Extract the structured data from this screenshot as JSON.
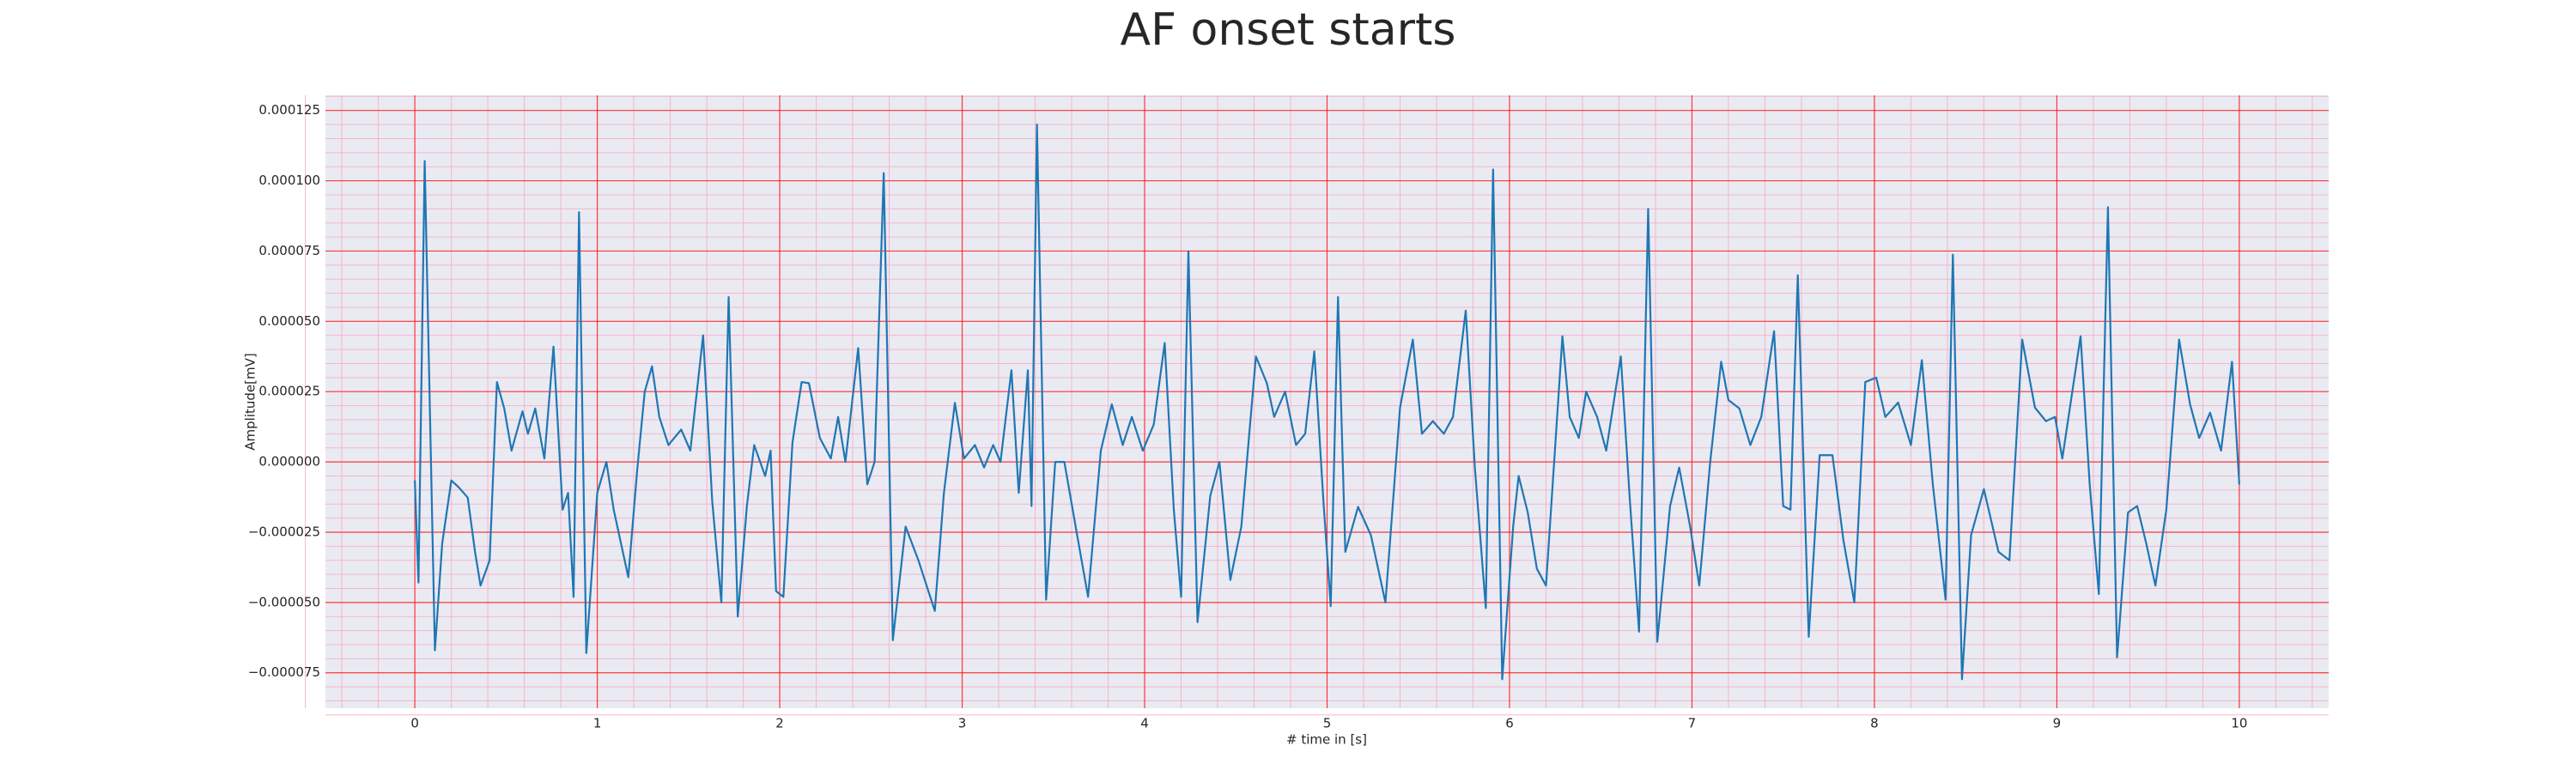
{
  "chart_data": {
    "type": "line",
    "title": "AF onset starts",
    "xlabel": "# time in [s]",
    "ylabel": "Amplitude[mV]",
    "xlim": [
      -0.49,
      10.49
    ],
    "ylim": [
      -8.76e-05,
      0.0001304
    ],
    "xticks": [
      0,
      1,
      2,
      3,
      4,
      5,
      6,
      7,
      8,
      9,
      10
    ],
    "yticks": [
      {
        "value": -7.5e-05,
        "label": "−0.000075"
      },
      {
        "value": -5e-05,
        "label": "−0.000050"
      },
      {
        "value": -2.5e-05,
        "label": "−0.000025"
      },
      {
        "value": 0,
        "label": "0.000000"
      },
      {
        "value": 2.5e-05,
        "label": "0.000025"
      },
      {
        "value": 5e-05,
        "label": "0.000050"
      },
      {
        "value": 7.5e-05,
        "label": "0.000075"
      },
      {
        "value": 0.0001,
        "label": "0.000100"
      },
      {
        "value": 0.000125,
        "label": "0.000125"
      }
    ],
    "grid": true,
    "minor_grid": true,
    "grid_color": "#ff0000",
    "minor_grid_color": "#f4b6c8",
    "background": "#eaeaf2",
    "series": [
      {
        "color": "#1f77b4",
        "x": [
          0,
          0.02,
          0.054,
          0.11,
          0.15,
          0.2,
          0.24,
          0.29,
          0.33,
          0.36,
          0.41,
          0.45,
          0.49,
          0.53,
          0.59,
          0.62,
          0.66,
          0.71,
          0.76,
          0.81,
          0.84,
          0.87,
          0.9,
          0.94,
          1.0,
          1.05,
          1.09,
          1.17,
          1.22,
          1.26,
          1.3,
          1.34,
          1.39,
          1.46,
          1.51,
          1.58,
          1.63,
          1.68,
          1.72,
          1.77,
          1.82,
          1.86,
          1.92,
          1.95,
          1.98,
          2.02,
          2.07,
          2.12,
          2.16,
          2.22,
          2.28,
          2.32,
          2.36,
          2.43,
          2.48,
          2.52,
          2.57,
          2.62,
          2.69,
          2.76,
          2.85,
          2.9,
          2.96,
          3.01,
          3.07,
          3.12,
          3.17,
          3.21,
          3.27,
          3.31,
          3.36,
          3.38,
          3.41,
          3.46,
          3.51,
          3.56,
          3.63,
          3.69,
          3.76,
          3.82,
          3.88,
          3.93,
          3.99,
          4.05,
          4.11,
          4.16,
          4.2,
          4.24,
          4.29,
          4.36,
          4.41,
          4.47,
          4.53,
          4.61,
          4.67,
          4.71,
          4.77,
          4.83,
          4.88,
          4.93,
          4.98,
          5.02,
          5.06,
          5.1,
          5.17,
          5.24,
          5.32,
          5.4,
          5.47,
          5.52,
          5.58,
          5.64,
          5.69,
          5.76,
          5.81,
          5.87,
          5.91,
          5.96,
          6.02,
          6.05,
          6.1,
          6.15,
          6.2,
          6.29,
          6.33,
          6.38,
          6.42,
          6.48,
          6.53,
          6.61,
          6.66,
          6.71,
          6.76,
          6.81,
          6.88,
          6.93,
          6.99,
          7.04,
          7.1,
          7.16,
          7.2,
          7.26,
          7.32,
          7.38,
          7.45,
          7.5,
          7.54,
          7.58,
          7.64,
          7.7,
          7.77,
          7.83,
          7.89,
          7.95,
          8.01,
          8.06,
          8.13,
          8.2,
          8.26,
          8.32,
          8.39,
          8.43,
          8.48,
          8.53,
          8.6,
          8.68,
          8.74,
          8.81,
          8.88,
          8.94,
          8.99,
          9.03,
          9.13,
          9.18,
          9.23,
          9.28,
          9.33,
          9.39,
          9.44,
          9.49,
          9.54,
          9.6,
          9.67,
          9.73,
          9.78,
          9.84,
          9.9,
          9.96,
          10.0
        ],
        "values": [
          -6.6e-06,
          -4.29e-05,
          0.000107,
          -6.7e-05,
          -2.9e-05,
          -6.6e-06,
          -9e-06,
          -1.27e-05,
          -3.2e-05,
          -4.4e-05,
          -3.5e-05,
          2.84e-05,
          1.9e-05,
          4e-06,
          1.8e-05,
          1e-05,
          1.9e-05,
          1.2e-06,
          4.1e-05,
          -1.7e-05,
          -1.1e-05,
          -4.8e-05,
          8.88e-05,
          -6.8e-05,
          -1.1e-05,
          0,
          -1.7e-05,
          -4.1e-05,
          -2e-06,
          2.5e-05,
          3.4e-05,
          1.6e-05,
          6e-06,
          1.15e-05,
          4e-06,
          4.5e-05,
          -1.4e-05,
          -5e-05,
          5.86e-05,
          -5.5e-05,
          -1.57e-05,
          6e-06,
          -5e-06,
          4e-06,
          -4.6e-05,
          -4.8e-05,
          7e-06,
          2.84e-05,
          2.8e-05,
          8.5e-06,
          1.2e-06,
          1.6e-05,
          0,
          4.05e-05,
          -8e-06,
          0,
          0.0001027,
          -6.34e-05,
          -2.3e-05,
          -3.5e-05,
          -5.3e-05,
          -1.1e-05,
          2.1e-05,
          1.2e-06,
          6e-06,
          -2e-06,
          6e-06,
          0,
          3.26e-05,
          -1.1e-05,
          3.26e-05,
          -1.57e-05,
          0.00012,
          -4.9e-05,
          0,
          0,
          -2.6e-05,
          -4.8e-05,
          4e-06,
          2.05e-05,
          6e-06,
          1.6e-05,
          4e-06,
          1.33e-05,
          4.23e-05,
          -1.7e-05,
          -4.8e-05,
          7.49e-05,
          -5.7e-05,
          -1.2e-05,
          0,
          -4.2e-05,
          -2.3e-05,
          3.75e-05,
          2.8e-05,
          1.6e-05,
          2.5e-05,
          6e-06,
          1e-05,
          3.93e-05,
          -1.4e-05,
          -5.13e-05,
          5.86e-05,
          -3.2e-05,
          -1.6e-05,
          -2.6e-05,
          -5e-05,
          1.93e-05,
          4.35e-05,
          1e-05,
          1.45e-05,
          1e-05,
          1.6e-05,
          5.38e-05,
          -2e-06,
          -5.2e-05,
          0.000104,
          -7.73e-05,
          -2.3e-05,
          -5e-06,
          -1.8e-05,
          -3.8e-05,
          -4.4e-05,
          4.47e-05,
          1.6e-05,
          8.5e-06,
          2.5e-05,
          1.6e-05,
          4e-06,
          3.75e-05,
          -1.4e-05,
          -6.04e-05,
          9e-05,
          -6.4e-05,
          -1.57e-05,
          -2e-06,
          -2.3e-05,
          -4.4e-05,
          0,
          3.56e-05,
          2.2e-05,
          1.9e-05,
          6e-06,
          1.6e-05,
          4.65e-05,
          -1.57e-05,
          -1.7e-05,
          6.64e-05,
          -6.22e-05,
          2.4e-06,
          2.4e-06,
          -2.78e-05,
          -5e-05,
          2.84e-05,
          3e-05,
          1.6e-05,
          2.11e-05,
          6e-06,
          3.62e-05,
          -7.9e-06,
          -4.9e-05,
          7.37e-05,
          -7.73e-05,
          -2.6e-05,
          -9.7e-06,
          -3.2e-05,
          -3.5e-05,
          4.35e-05,
          1.93e-05,
          1.45e-05,
          1.6e-05,
          1.2e-06,
          4.47e-05,
          -8e-06,
          -4.7e-05,
          9.06e-05,
          -6.95e-05,
          -1.8e-05,
          -1.57e-05,
          -2.9e-05,
          -4.4e-05,
          -1.7e-05,
          4.35e-05,
          2.05e-05,
          8.5e-06,
          1.75e-05,
          4e-06,
          3.56e-05,
          -8e-06
        ]
      }
    ]
  }
}
